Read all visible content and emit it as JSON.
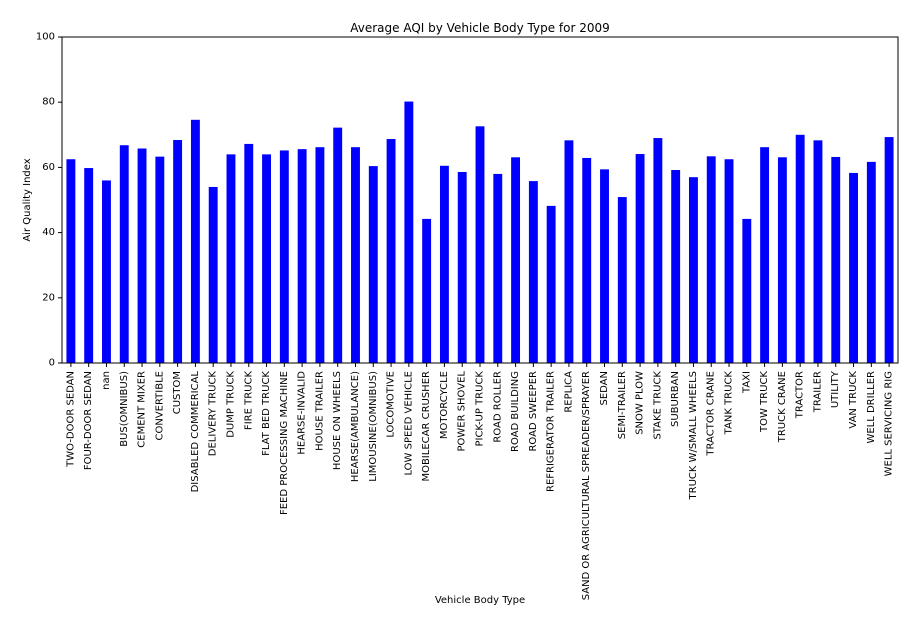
{
  "chart_data": {
    "type": "bar",
    "title": "Average AQI by Vehicle Body Type for 2009",
    "xlabel": "Vehicle Body Type",
    "ylabel": "Air Quality Index",
    "ylim": [
      0,
      100
    ],
    "yticks": [
      0,
      20,
      40,
      60,
      80,
      100
    ],
    "grid": false,
    "bar_color": "#0000ff",
    "categories": [
      "TWO-DOOR SEDAN",
      "FOUR-DOOR SEDAN",
      "nan",
      "BUS(OMNIBUS)",
      "CEMENT MIXER",
      "CONVERTIBLE",
      "CUSTOM",
      "DISABLED COMMERICAL",
      "DELIVERY TRUCK",
      "DUMP TRUCK",
      "FIRE TRUCK",
      "FLAT BED TRUCK",
      "FEED PROCESSING MACHINE",
      "HEARSE-INVALID",
      "HOUSE TRAILER",
      "HOUSE ON WHEELS",
      "HEARSE(AMBULANCE)",
      "LIMOUSINE(OMNIBUS)",
      "LOCOMOTIVE",
      "LOW SPEED VEHICLE",
      "MOBILECAR CRUSHER",
      "MOTORCYCLE",
      "POWER SHOVEL",
      "PICK-UP TRUCK",
      "ROAD ROLLER",
      "ROAD BUILDING",
      "ROAD SWEEPER",
      "REFRIGERATOR TRAILER",
      "REPLICA",
      "SAND OR AGRICULTURAL SPREADER/SPRAYER",
      "SEDAN",
      "SEMI-TRAILER",
      "SNOW PLOW",
      "STAKE TRUCK",
      "SUBURBAN",
      "TRUCK W/SMALL WHEELS",
      "TRACTOR CRANE",
      "TANK TRUCK",
      "TAXI",
      "TOW TRUCK",
      "TRUCK CRANE",
      "TRACTOR",
      "TRAILER",
      "UTILITY",
      "VAN TRUCK",
      "WELL DRILLER",
      "WELL SERVICING RIG"
    ],
    "values": [
      62.5,
      59.8,
      56.0,
      66.8,
      65.8,
      63.3,
      68.4,
      74.6,
      54.0,
      64.0,
      67.2,
      64.0,
      65.2,
      65.6,
      66.2,
      72.2,
      66.2,
      60.4,
      68.7,
      80.2,
      44.2,
      60.5,
      58.6,
      72.6,
      58.0,
      63.1,
      55.8,
      48.2,
      68.3,
      62.9,
      59.4,
      50.9,
      64.1,
      69.0,
      59.2,
      57.0,
      63.4,
      62.5,
      44.2,
      66.2,
      63.1,
      70.0,
      68.3,
      63.2,
      58.3,
      61.7,
      69.3
    ]
  }
}
